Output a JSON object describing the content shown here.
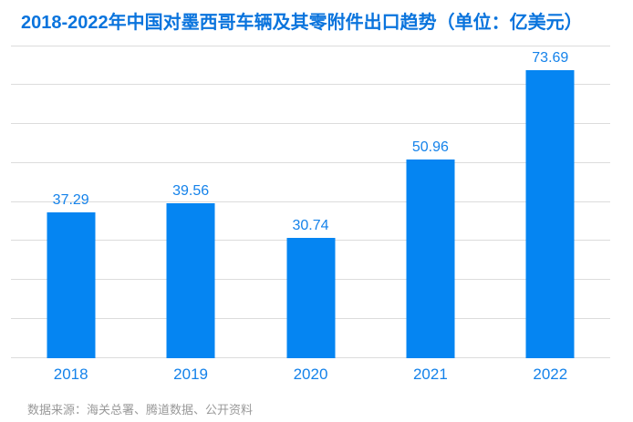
{
  "chart_data": {
    "type": "bar",
    "title": "2018-2022年中国对墨西哥车辆及其零附件出口趋势（单位：亿美元）",
    "categories": [
      "2018",
      "2019",
      "2020",
      "2021",
      "2022"
    ],
    "values": [
      37.29,
      39.56,
      30.74,
      50.96,
      73.69
    ],
    "value_labels": [
      "37.29",
      "39.56",
      "30.74",
      "50.96",
      "73.69"
    ],
    "xlabel": "",
    "ylabel": "",
    "ylim": [
      0,
      80
    ],
    "gridline_step": 10,
    "grid": true,
    "legend": false,
    "y_tick_labels_shown": false,
    "value_labels_shown": true
  },
  "source_note": "数据来源：海关总署、腾道数据、公开资料",
  "colors": {
    "bar": "#0585f2",
    "title": "#0a74dd",
    "label": "#1482ea",
    "gridline": "#dcdcdc",
    "source_text": "#999999",
    "background": "#ffffff"
  }
}
